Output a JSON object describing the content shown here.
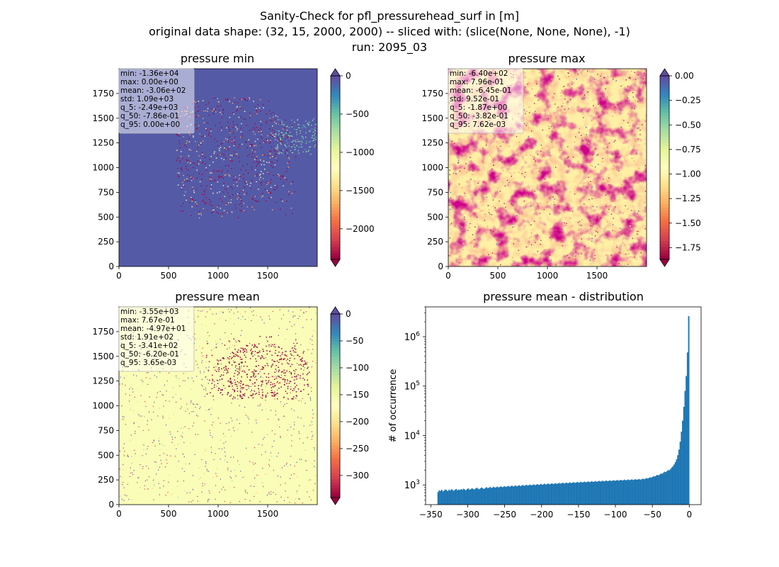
{
  "figure": {
    "suptitle_lines": [
      "Sanity-Check for pfl_pressurehead_surf in [m]",
      "original data shape: (32, 15, 2000, 2000) -- sliced with: (slice(None, None, None), -1)",
      "run: 2095_03"
    ]
  },
  "palette": {
    "spectral": [
      "#9e0142",
      "#d53e4f",
      "#f46d43",
      "#fdae61",
      "#fee08b",
      "#ffffbf",
      "#e6f598",
      "#abdda4",
      "#66c2a5",
      "#3288bd",
      "#5e4fa2"
    ],
    "hist_bar": "#1f77b4"
  },
  "chart_data": [
    {
      "type": "heatmap",
      "title": "pressure min",
      "colormap": "Spectral",
      "xlim": [
        0,
        2000
      ],
      "ylim": [
        0,
        2000
      ],
      "xticks": [
        "0",
        "500",
        "1000",
        "1500"
      ],
      "yticks": [
        "0",
        "250",
        "500",
        "750",
        "1000",
        "1250",
        "1500",
        "1750"
      ],
      "clim": [
        -2400,
        0
      ],
      "cticks": [
        {
          "value": 0,
          "label": "0"
        },
        {
          "value": -500,
          "label": "−500"
        },
        {
          "value": -1000,
          "label": "−1000"
        },
        {
          "value": -1500,
          "label": "−1500"
        },
        {
          "value": -2000,
          "label": "−2000"
        }
      ],
      "extend": "both",
      "background_level": 0.98,
      "stats": [
        "min: -1.36e+04",
        "max: 0.00e+00",
        "mean: -3.06e+02",
        "std: 1.09e+03",
        "q_5: -2.49e+03",
        "q_50: -7.86e-01",
        "q_95: 0.00e+00"
      ]
    },
    {
      "type": "heatmap",
      "title": "pressure max",
      "colormap": "Spectral",
      "xlim": [
        0,
        2000
      ],
      "ylim": [
        0,
        2000
      ],
      "xticks": [
        "0",
        "500",
        "1000",
        "1500"
      ],
      "yticks": [
        "0",
        "250",
        "500",
        "750",
        "1000",
        "1250",
        "1500",
        "1750"
      ],
      "clim": [
        -1.87,
        0
      ],
      "cticks": [
        {
          "value": 0,
          "label": "0.00"
        },
        {
          "value": -0.25,
          "label": "−0.25"
        },
        {
          "value": -0.5,
          "label": "−0.50"
        },
        {
          "value": -0.75,
          "label": "−0.75"
        },
        {
          "value": -1.0,
          "label": "−1.00"
        },
        {
          "value": -1.25,
          "label": "−1.25"
        },
        {
          "value": -1.5,
          "label": "−1.50"
        },
        {
          "value": -1.75,
          "label": "−1.75"
        }
      ],
      "extend": "both",
      "background_level": 0.45,
      "stats": [
        "min: -6.40e+02",
        "max: 7.96e-01",
        "mean: -6.45e-01",
        "std: 9.52e-01",
        "q_5: -1.87e+00",
        "q_50: -3.82e-01",
        "q_95: 7.62e-03"
      ]
    },
    {
      "type": "heatmap",
      "title": "pressure mean",
      "colormap": "Spectral",
      "xlim": [
        0,
        2000
      ],
      "ylim": [
        0,
        2000
      ],
      "xticks": [
        "0",
        "500",
        "1000",
        "1500"
      ],
      "yticks": [
        "0",
        "250",
        "500",
        "750",
        "1000",
        "1250",
        "1500",
        "1750"
      ],
      "clim": [
        -341,
        0
      ],
      "cticks": [
        {
          "value": 0,
          "label": "0"
        },
        {
          "value": -50,
          "label": "−50"
        },
        {
          "value": -100,
          "label": "−100"
        },
        {
          "value": -150,
          "label": "−150"
        },
        {
          "value": -200,
          "label": "−200"
        },
        {
          "value": -250,
          "label": "−250"
        },
        {
          "value": -300,
          "label": "−300"
        }
      ],
      "extend": "both",
      "background_level": 0.52,
      "stats": [
        "min: -3.55e+03",
        "max: 7.67e-01",
        "mean: -4.97e+01",
        "std: 1.91e+02",
        "q_5: -3.41e+02",
        "q_50: -6.20e-01",
        "q_95: 3.65e-03"
      ]
    },
    {
      "type": "bar",
      "title": "pressure mean - distribution",
      "ylabel": "# of occurrence",
      "xlabel": "",
      "yscale": "log",
      "xlim": [
        -357,
        16
      ],
      "ylim": [
        400,
        4000000
      ],
      "xticks": [
        {
          "value": -350,
          "label": "−350"
        },
        {
          "value": -300,
          "label": "−300"
        },
        {
          "value": -250,
          "label": "−250"
        },
        {
          "value": -200,
          "label": "−200"
        },
        {
          "value": -150,
          "label": "−150"
        },
        {
          "value": -100,
          "label": "−100"
        },
        {
          "value": -50,
          "label": "−50"
        },
        {
          "value": 0,
          "label": "0"
        }
      ],
      "yticks": [
        {
          "value": 1000,
          "base": "10",
          "exp": "3"
        },
        {
          "value": 10000,
          "base": "10",
          "exp": "4"
        },
        {
          "value": 100000,
          "base": "10",
          "exp": "5"
        },
        {
          "value": 1000000,
          "base": "10",
          "exp": "6"
        }
      ],
      "hist_range": [
        -341,
        0
      ],
      "values": [
        720,
        780,
        760,
        800,
        740,
        770,
        810,
        790,
        750,
        800,
        770,
        820,
        790,
        760,
        800,
        830,
        780,
        810,
        790,
        820,
        800,
        840,
        810,
        780,
        830,
        850,
        800,
        820,
        860,
        830,
        810,
        850,
        880,
        840,
        820,
        860,
        890,
        850,
        830,
        870,
        900,
        860,
        880,
        910,
        870,
        890,
        920,
        880,
        900,
        930,
        890,
        910,
        940,
        900,
        920,
        950,
        910,
        930,
        960,
        920,
        940,
        970,
        930,
        950,
        980,
        940,
        960,
        990,
        950,
        970,
        1000,
        960,
        980,
        1010,
        970,
        990,
        1020,
        980,
        1000,
        1030,
        990,
        1010,
        1040,
        1000,
        1020,
        1050,
        1010,
        1030,
        1060,
        1020,
        1040,
        1070,
        1030,
        1050,
        1080,
        1040,
        1060,
        1090,
        1050,
        1070,
        1100,
        1060,
        1080,
        1110,
        1070,
        1090,
        1120,
        1080,
        1100,
        1130,
        1090,
        1110,
        1140,
        1100,
        1120,
        1150,
        1110,
        1130,
        1160,
        1120,
        1140,
        1170,
        1130,
        1150,
        1180,
        1140,
        1160,
        1190,
        1150,
        1170,
        1200,
        1160,
        1180,
        1210,
        1170,
        1190,
        1220,
        1180,
        1200,
        1230,
        1190,
        1210,
        1240,
        1200,
        1220,
        1250,
        1210,
        1230,
        1260,
        1220,
        1240,
        1270,
        1230,
        1250,
        1280,
        1240,
        1260,
        1290,
        1250,
        1270,
        1300,
        1260,
        1280,
        1310,
        1270,
        1290,
        1320,
        1280,
        1300,
        1340,
        1310,
        1330,
        1380,
        1350,
        1380,
        1430,
        1400,
        1450,
        1500,
        1480,
        1540,
        1600,
        1560,
        1620,
        1700,
        1680,
        1760,
        1850,
        1820,
        1900,
        2000,
        1980,
        2100,
        2250,
        2400,
        2600,
        2900,
        3300,
        4000,
        5200,
        7500,
        12000,
        20000,
        38000,
        80000,
        160000,
        480000,
        2600000
      ]
    }
  ]
}
